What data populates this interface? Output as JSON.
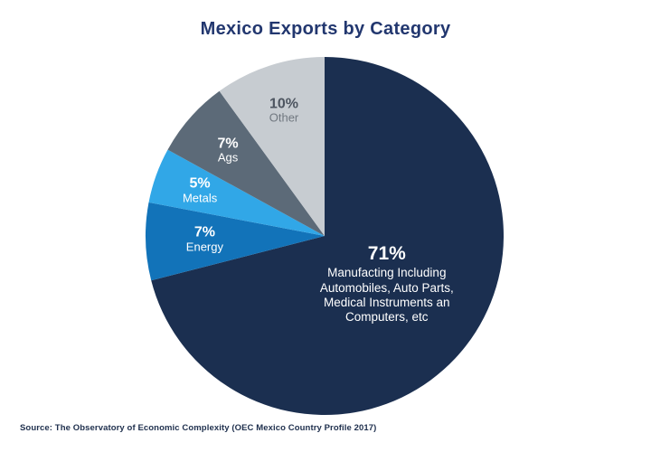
{
  "title": "Mexico Exports by Category",
  "source": "Source: The Observatory of Economic Complexity (OEC Mexico Country Profile 2017)",
  "colors": {
    "background": "#ffffff",
    "title": "#22376f",
    "source_text": "#1e2f4d"
  },
  "chart_data": {
    "type": "pie",
    "title": "Mexico Exports by Category",
    "start_angle_deg": 0,
    "direction": "clockwise",
    "total": 100,
    "legend_position": "none",
    "slices": [
      {
        "id": "manufacturing",
        "value": 71,
        "pct_label": "71%",
        "label_lines": [
          "Manufacting Including",
          "Automobiles, Auto Parts,",
          "Medical Instruments an",
          "Computers, etc"
        ],
        "color": "#1b2f50",
        "pct_color": "#ffffff",
        "line_color": "#ffffff",
        "label_r": 0.44
      },
      {
        "id": "energy",
        "value": 7,
        "pct_label": "7%",
        "label_lines": [
          "Energy"
        ],
        "color": "#1273b9",
        "pct_color": "#ffffff",
        "line_color": "#ffffff",
        "label_r": 0.67
      },
      {
        "id": "metals",
        "value": 5,
        "pct_label": "5%",
        "label_lines": [
          "Metals"
        ],
        "color": "#31a7e7",
        "pct_color": "#ffffff",
        "line_color": "#ffffff",
        "label_r": 0.74
      },
      {
        "id": "ags",
        "value": 7,
        "pct_label": "7%",
        "label_lines": [
          "Ags"
        ],
        "color": "#5c6a78",
        "pct_color": "#ffffff",
        "line_color": "#ffffff",
        "label_r": 0.72
      },
      {
        "id": "other",
        "value": 10,
        "pct_label": "10%",
        "label_lines": [
          "Other"
        ],
        "color": "#c7ccd1",
        "pct_color": "#4d5560",
        "line_color": "#717880",
        "label_r": 0.735
      }
    ]
  }
}
